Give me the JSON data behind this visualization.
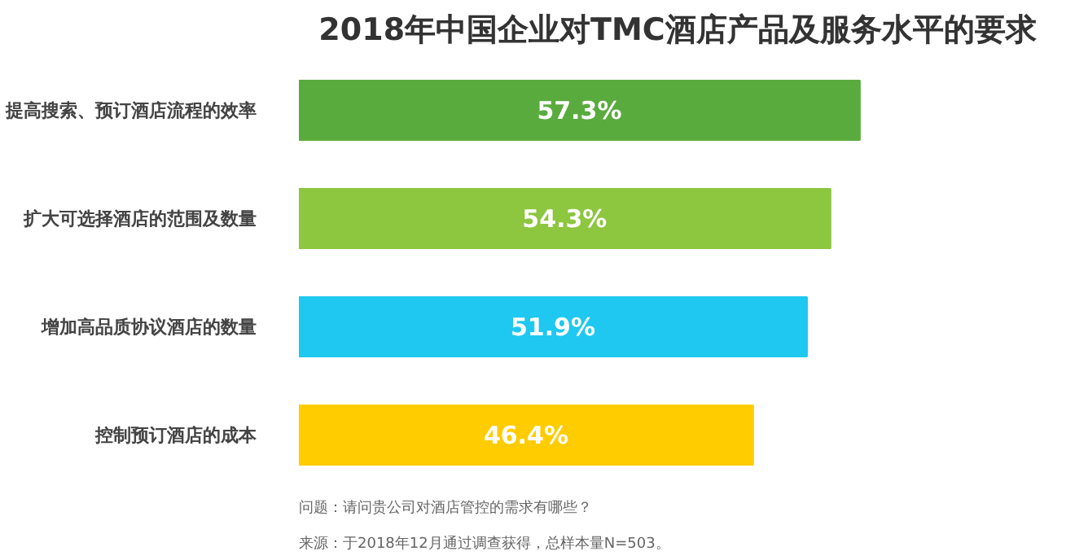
{
  "chart_data": {
    "type": "bar",
    "orientation": "horizontal",
    "title": "2018年中国企业对TMC酒店产品及服务水平的要求",
    "categories": [
      "提高搜索、预订酒店流程的效率",
      "扩大可选择酒店的范围及数量",
      "增加高品质协议酒店的数量",
      "控制预订酒店的成本"
    ],
    "values": [
      57.3,
      54.3,
      51.9,
      46.4
    ],
    "colors": [
      "#5aab3e",
      "#8dc63f",
      "#1fc8f0",
      "#ffcc00"
    ],
    "value_labels": [
      "57.3%",
      "54.3%",
      "51.9%",
      "46.4%"
    ],
    "annotations": [
      "问题：请问贵公司对酒店管控的需求有哪些？",
      "来源：于2018年12月通过调查获得，总样本量N=503。"
    ]
  }
}
